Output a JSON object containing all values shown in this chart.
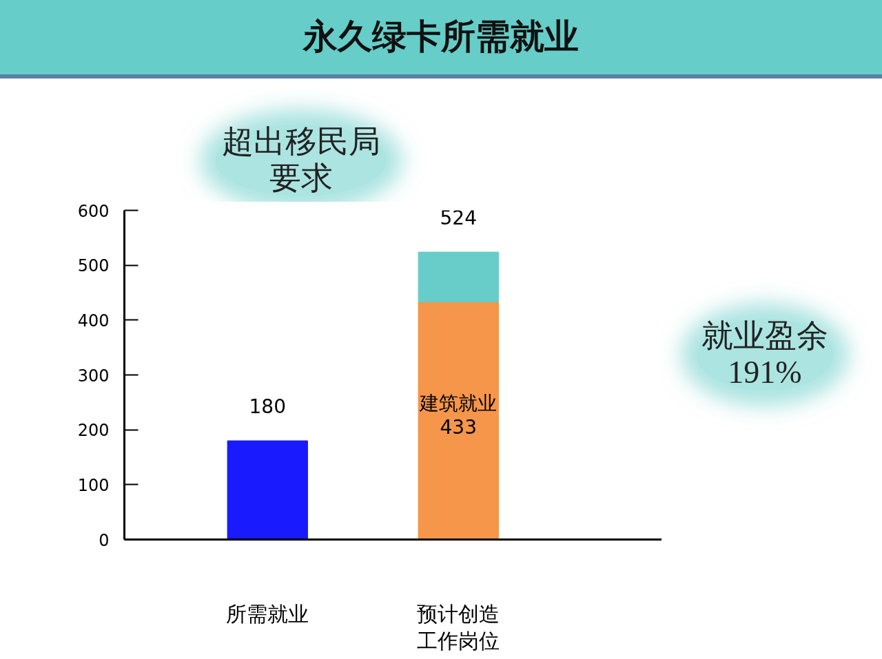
{
  "chart_data": {
    "type": "bar",
    "title": "永久绿卡所需就业",
    "categories": [
      "所需就业",
      "预计创造工作岗位"
    ],
    "stacked": true,
    "series": [
      {
        "color": "#1a1aff",
        "values": [
          180,
          null
        ]
      },
      {
        "name": "建筑就业",
        "color": "#f5964a",
        "values": [
          null,
          433
        ],
        "value_labels": [
          null,
          "433"
        ]
      },
      {
        "color": "#68cdc8",
        "values": [
          null,
          91
        ]
      }
    ],
    "totals": [
      "180",
      "524"
    ],
    "ylim": [
      0,
      600
    ],
    "yticks": [
      0,
      100,
      200,
      300,
      400,
      500,
      600
    ],
    "annotations": [
      "超出移民局要求",
      "就业盈余191%"
    ]
  }
}
